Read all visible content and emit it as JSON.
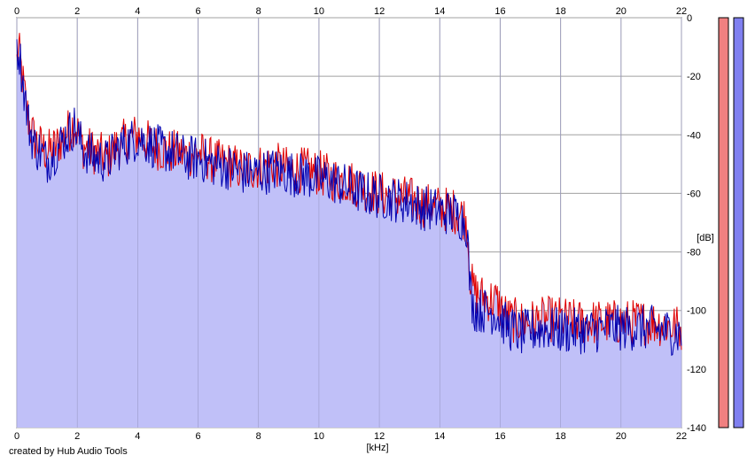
{
  "chart_data": {
    "type": "area",
    "title": "",
    "xlabel": "[kHz]",
    "ylabel": "[dB]",
    "xlim": [
      0,
      22
    ],
    "ylim": [
      -140,
      0
    ],
    "x_ticks": [
      "0",
      "2",
      "4",
      "6",
      "8",
      "10",
      "12",
      "14",
      "16",
      "18",
      "20",
      "22"
    ],
    "y_ticks": [
      "0",
      "-20",
      "-40",
      "-60",
      "-80",
      "-100",
      "-120",
      "-140"
    ],
    "grid": true,
    "colors": {
      "left": "#e00000",
      "right": "#0000b0",
      "fill": "#c0c0f8",
      "meter_left": "#f08080",
      "meter_right": "#8080f0"
    },
    "series": [
      {
        "x": [
          0,
          0.05,
          0.2,
          0.4,
          0.6,
          0.8,
          1,
          1.3,
          1.6,
          1.9,
          2.2,
          2.6,
          3,
          3.3,
          3.6,
          4,
          4.4,
          4.8,
          5.2,
          5.6,
          6,
          6.5,
          7,
          7.5,
          8,
          8.5,
          9,
          9.5,
          10,
          10.5,
          11,
          11.5,
          12,
          12.5,
          13,
          13.5,
          14,
          14.5,
          14.8,
          14.9,
          15,
          15.1,
          15.3,
          15.6,
          15.9,
          16,
          16.3,
          16.7,
          17,
          17.5,
          18,
          18.5,
          19,
          19.5,
          20,
          20.5,
          21,
          21.5,
          22
        ],
        "values": [
          -15,
          -10,
          -22,
          -36,
          -42,
          -44,
          -46,
          -44,
          -40,
          -36,
          -44,
          -46,
          -48,
          -44,
          -42,
          -40,
          -43,
          -45,
          -46,
          -47,
          -46,
          -49,
          -50,
          -52,
          -51,
          -50,
          -52,
          -52,
          -53,
          -55,
          -56,
          -58,
          -60,
          -61,
          -62,
          -64,
          -65,
          -66,
          -68,
          -70,
          -88,
          -93,
          -95,
          -96,
          -97,
          -99,
          -103,
          -104,
          -104,
          -103,
          -103,
          -104,
          -104,
          -104,
          -104,
          -104,
          -104,
          -105,
          -106
        ]
      },
      {
        "x": [
          0,
          0.05,
          0.2,
          0.4,
          0.6,
          0.8,
          1,
          1.3,
          1.6,
          1.9,
          2.2,
          2.6,
          3,
          3.3,
          3.6,
          4,
          4.4,
          4.8,
          5.2,
          5.6,
          6,
          6.5,
          7,
          7.5,
          8,
          8.5,
          9,
          9.5,
          10,
          10.5,
          11,
          11.5,
          12,
          12.5,
          13,
          13.5,
          14,
          14.5,
          14.8,
          14.9,
          15,
          15.1,
          15.3,
          15.6,
          15.9,
          16,
          16.3,
          16.7,
          17,
          17.5,
          18,
          18.5,
          19,
          19.5,
          20,
          20.5,
          21,
          21.5,
          22
        ],
        "values": [
          -14,
          -9,
          -22,
          -37,
          -44,
          -46,
          -49,
          -45,
          -41,
          -37,
          -45,
          -48,
          -49,
          -45,
          -43,
          -41,
          -43,
          -45,
          -46,
          -48,
          -48,
          -50,
          -51,
          -53,
          -53,
          -52,
          -53,
          -54,
          -55,
          -56,
          -58,
          -60,
          -61,
          -62,
          -63,
          -65,
          -66,
          -67,
          -69,
          -71,
          -92,
          -99,
          -100,
          -100,
          -101,
          -103,
          -106,
          -108,
          -107,
          -106,
          -107,
          -107,
          -107,
          -106,
          -106,
          -106,
          -106,
          -107,
          -108
        ]
      }
    ],
    "noise_amplitude": 8,
    "footer": "created by Hub Audio Tools"
  }
}
